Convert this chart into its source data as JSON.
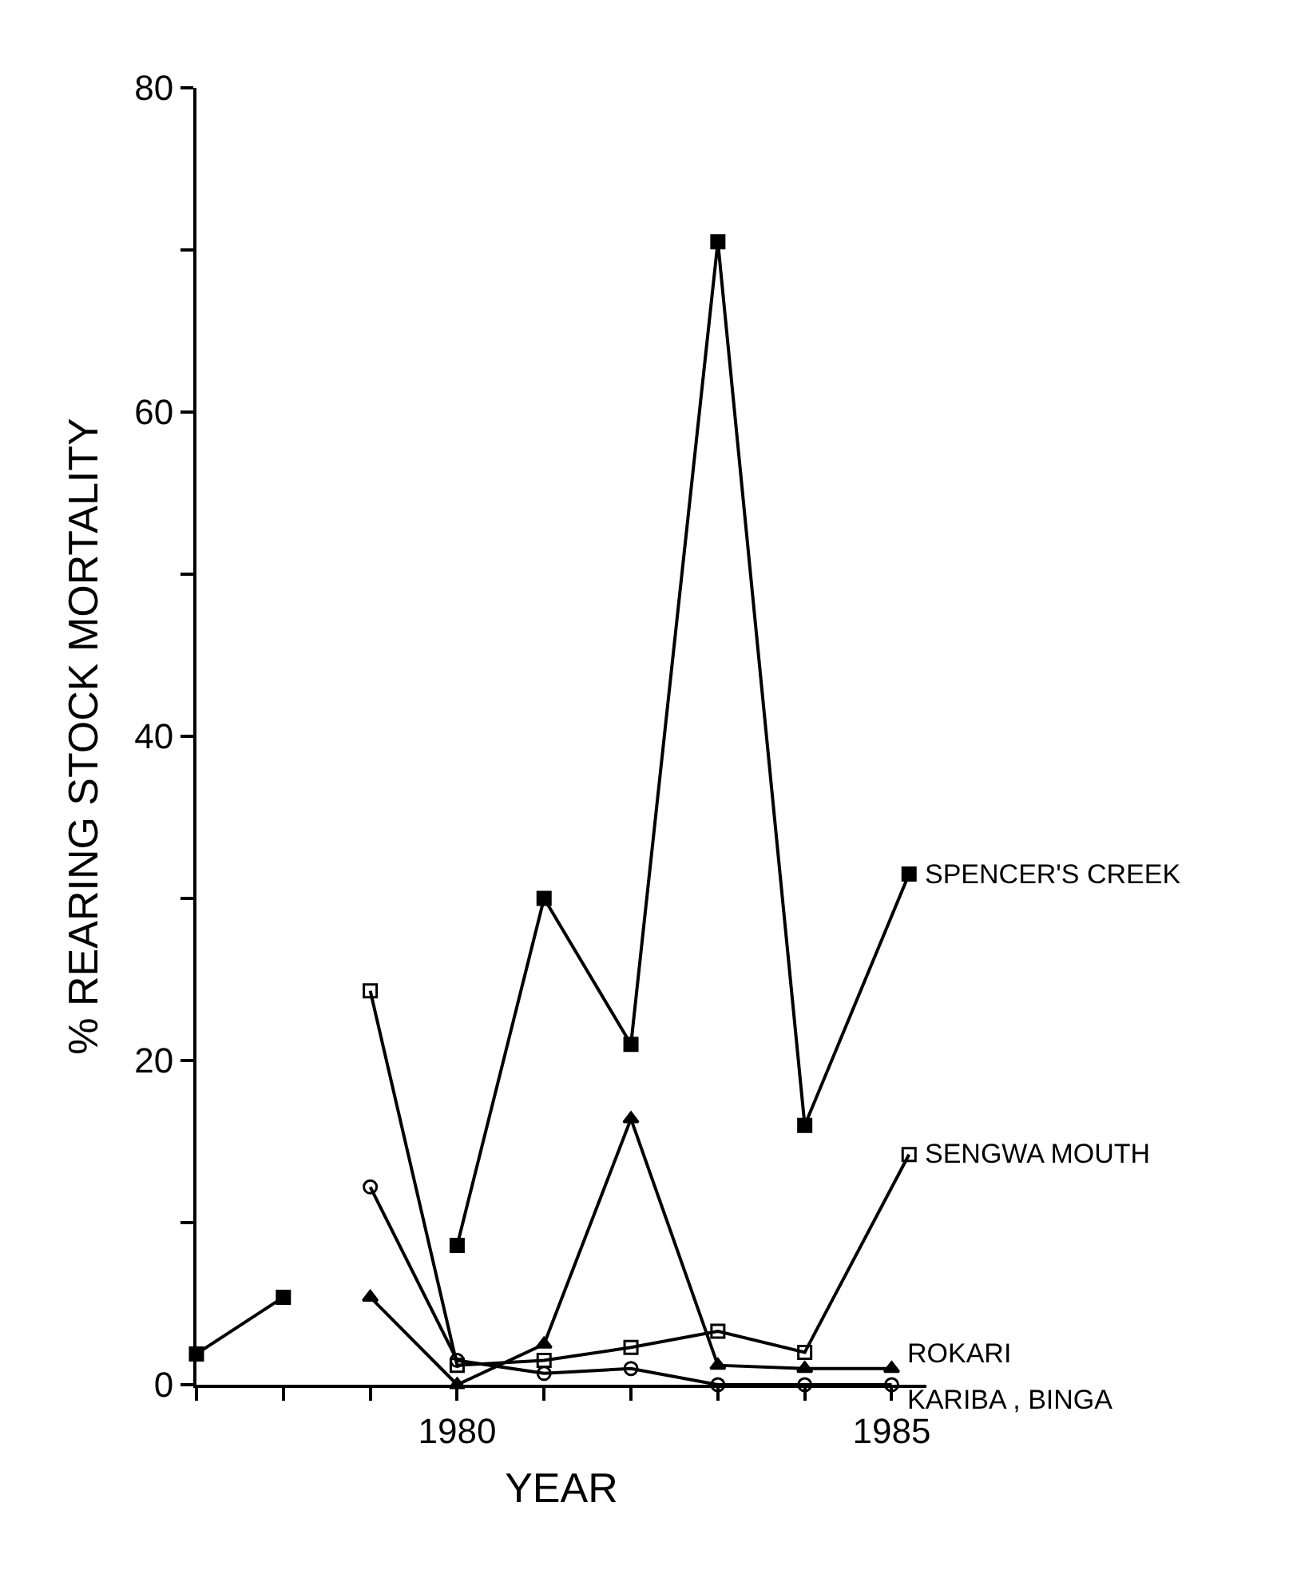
{
  "chart_data": {
    "type": "line",
    "xlabel": "YEAR",
    "ylabel": "% REARING STOCK MORTALITY",
    "xlim": [
      1977,
      1985.4
    ],
    "ylim": [
      0,
      80
    ],
    "xticks": [
      {
        "value": 1977,
        "label": null
      },
      {
        "value": 1978,
        "label": null
      },
      {
        "value": 1979,
        "label": null
      },
      1980,
      {
        "value": 1981,
        "label": null
      },
      {
        "value": 1982,
        "label": null
      },
      {
        "value": 1983,
        "label": null
      },
      {
        "value": 1984,
        "label": null
      },
      1985
    ],
    "yticks": [
      0,
      {
        "value": 10,
        "label": null
      },
      20,
      {
        "value": 30,
        "label": null
      },
      40,
      {
        "value": 50,
        "label": null
      },
      60,
      {
        "value": 70,
        "label": null
      },
      80
    ],
    "legend": false,
    "line_style": "solid",
    "series": [
      {
        "name": "SPENCER'S CREEK",
        "color": "#000000",
        "marker": "square",
        "x": [
          1977,
          1978,
          1979,
          1980,
          1981,
          1982,
          1983,
          1984,
          1985.2
        ],
        "values": [
          1.9,
          5.4,
          null,
          8.6,
          30,
          21,
          70.5,
          16,
          31.5
        ]
      },
      {
        "name": "SENGWA MOUTH",
        "color": "#000000",
        "marker": "square-open",
        "x": [
          1979,
          1980,
          1981,
          1982,
          1983,
          1984,
          1985.2
        ],
        "values": [
          24.3,
          1.2,
          1.5,
          2.3,
          3.3,
          2.0,
          14.2
        ]
      },
      {
        "name": "ROKARI",
        "color": "#000000",
        "marker": "triangle",
        "x": [
          1979,
          1980,
          1981,
          1982,
          1983,
          1984,
          1985
        ],
        "values": [
          5.4,
          0,
          2.5,
          16.4,
          1.2,
          1.0,
          1.0
        ]
      },
      {
        "name": "KARIBA , BINGA",
        "color": "#000000",
        "marker": "circle-open",
        "x": [
          1979,
          1980,
          1981,
          1982,
          1983,
          1984,
          1985
        ],
        "values": [
          12.2,
          1.5,
          0.7,
          1.0,
          0,
          0,
          0
        ]
      }
    ]
  }
}
